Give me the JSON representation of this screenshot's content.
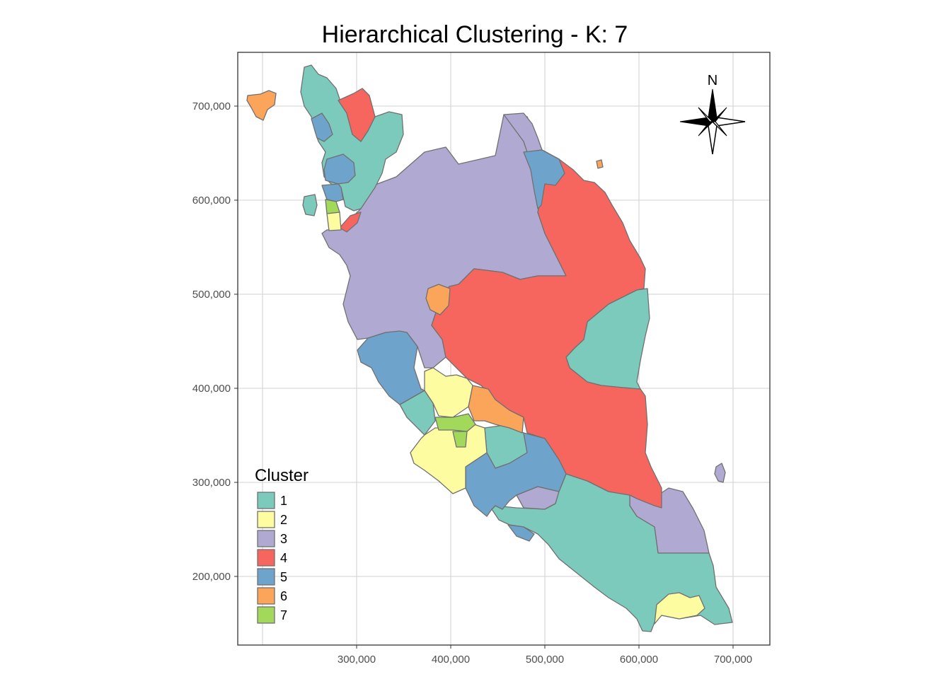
{
  "title": "Hierarchical Clustering - K: 7",
  "map": {
    "x_ticks": [
      {
        "value": 300000,
        "label": "300,000"
      },
      {
        "value": 400000,
        "label": "400,000"
      },
      {
        "value": 500000,
        "label": "500,000"
      },
      {
        "value": 600000,
        "label": "600,000"
      },
      {
        "value": 700000,
        "label": "700,000"
      }
    ],
    "y_ticks": [
      {
        "value": 700000,
        "label": "700,000"
      },
      {
        "value": 600000,
        "label": "600,000"
      },
      {
        "value": 500000,
        "label": "500,000"
      },
      {
        "value": 400000,
        "label": "400,000"
      },
      {
        "value": 300000,
        "label": "300,000"
      },
      {
        "value": 200000,
        "label": "200,000"
      }
    ],
    "x_range": [
      175000,
      740000
    ],
    "y_range": [
      130000,
      755000
    ],
    "grid": true,
    "north_arrow": {
      "label": "N",
      "position": "top-right"
    }
  },
  "legend": {
    "title": "Cluster",
    "position": "bottom-left",
    "items": [
      {
        "label": "1",
        "color": "#7ccabb"
      },
      {
        "label": "2",
        "color": "#fdfca0"
      },
      {
        "label": "3",
        "color": "#b0a9d2"
      },
      {
        "label": "4",
        "color": "#f6665f"
      },
      {
        "label": "5",
        "color": "#6ea3cc"
      },
      {
        "label": "6",
        "color": "#fba55a"
      },
      {
        "label": "7",
        "color": "#a3d95a"
      }
    ]
  }
}
